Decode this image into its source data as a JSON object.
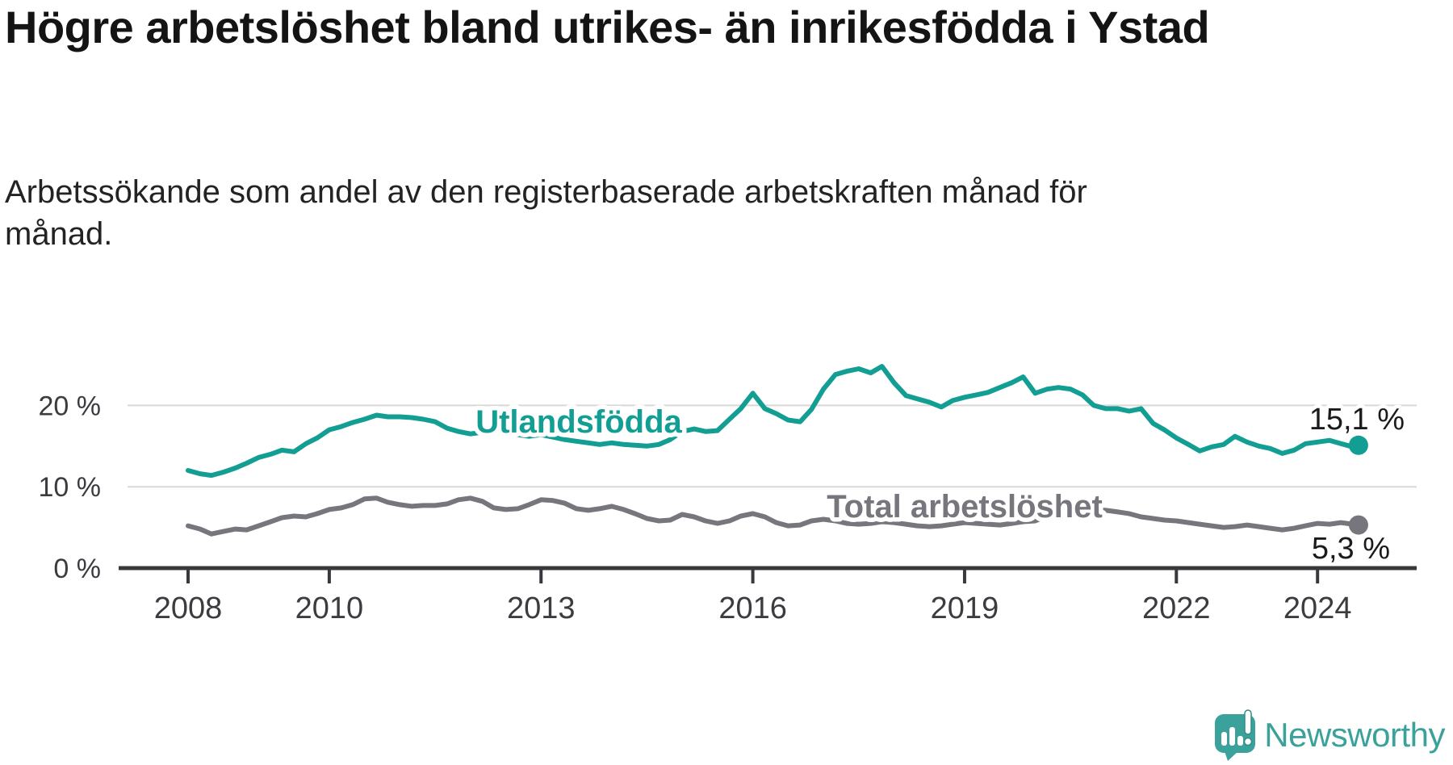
{
  "header": {
    "title": "Högre arbetslöshet bland utrikes- än inrikesfödda i Ystad",
    "subtitle": "Arbetssökande som andel av den registerbaserade arbetskraften månad för månad."
  },
  "colors": {
    "background": "#ffffff",
    "title_text": "#141414",
    "subtitle_text": "#232323",
    "tick_text": "#3c3b40",
    "gridline": "#d8d8d8",
    "axis": "#39383d",
    "value_label_text": "#1b1b1b",
    "series_foreign_born": "#139e93",
    "series_total": "#77767d",
    "logo_teal": "#3aa29a"
  },
  "chart_data": {
    "type": "line",
    "title": "Högre arbetslöshet bland utrikes- än inrikesfödda i Ystad",
    "subtitle": "Arbetssökande som andel av den registerbaserade arbetskraften månad för månad.",
    "grid": "horizontal-only",
    "legend_position": "inline-on-lines",
    "x_axis": {
      "min": 2007.6,
      "max": 2025.4,
      "ticks": [
        {
          "value": 2008,
          "label": "2008"
        },
        {
          "value": 2010,
          "label": "2010"
        },
        {
          "value": 2013,
          "label": "2013"
        },
        {
          "value": 2016,
          "label": "2016"
        },
        {
          "value": 2019,
          "label": "2019"
        },
        {
          "value": 2022,
          "label": "2022"
        },
        {
          "value": 2024,
          "label": "2024"
        }
      ]
    },
    "y_axis": {
      "min": 0,
      "max": 26,
      "unit": "%",
      "ticks": [
        {
          "value": 0,
          "label": "0 %"
        },
        {
          "value": 10,
          "label": "10 %"
        },
        {
          "value": 20,
          "label": "20 %"
        }
      ]
    },
    "x": [
      2008,
      2008.17,
      2008.33,
      2008.5,
      2008.67,
      2008.83,
      2009,
      2009.17,
      2009.33,
      2009.5,
      2009.67,
      2009.83,
      2010,
      2010.17,
      2010.33,
      2010.5,
      2010.67,
      2010.83,
      2011,
      2011.17,
      2011.33,
      2011.5,
      2011.67,
      2011.83,
      2012,
      2012.17,
      2012.33,
      2012.5,
      2012.67,
      2012.83,
      2013,
      2013.17,
      2013.33,
      2013.5,
      2013.67,
      2013.83,
      2014,
      2014.17,
      2014.33,
      2014.5,
      2014.67,
      2014.83,
      2015,
      2015.17,
      2015.33,
      2015.5,
      2015.67,
      2015.83,
      2016,
      2016.17,
      2016.33,
      2016.5,
      2016.67,
      2016.83,
      2017,
      2017.17,
      2017.33,
      2017.5,
      2017.67,
      2017.83,
      2018,
      2018.17,
      2018.33,
      2018.5,
      2018.67,
      2018.83,
      2019,
      2019.17,
      2019.33,
      2019.5,
      2019.67,
      2019.83,
      2020,
      2020.17,
      2020.33,
      2020.5,
      2020.67,
      2020.83,
      2021,
      2021.17,
      2021.33,
      2021.5,
      2021.67,
      2021.83,
      2022,
      2022.17,
      2022.33,
      2022.5,
      2022.67,
      2022.83,
      2023,
      2023.17,
      2023.33,
      2023.5,
      2023.67,
      2023.83,
      2024,
      2024.17,
      2024.33,
      2024.5,
      2024.58
    ],
    "series": [
      {
        "name": "Utlandsfödda",
        "color": "#139e93",
        "end_label": "15,1 %",
        "end_value": 15.1,
        "values": [
          12.0,
          11.6,
          11.4,
          11.8,
          12.3,
          12.9,
          13.6,
          14.0,
          14.5,
          14.3,
          15.3,
          16.0,
          17.0,
          17.4,
          17.9,
          18.3,
          18.8,
          18.6,
          18.6,
          18.5,
          18.3,
          18.0,
          17.2,
          16.8,
          16.5,
          16.7,
          17.0,
          16.8,
          16.4,
          16.2,
          16.4,
          16.1,
          15.8,
          15.6,
          15.4,
          15.2,
          15.4,
          15.2,
          15.1,
          15.0,
          15.2,
          15.8,
          16.8,
          17.1,
          16.8,
          16.9,
          18.3,
          19.6,
          21.5,
          19.6,
          19.0,
          18.2,
          18.0,
          19.5,
          22.0,
          23.8,
          24.2,
          24.5,
          24.0,
          24.8,
          22.8,
          21.2,
          20.8,
          20.4,
          19.8,
          20.6,
          21.0,
          21.3,
          21.6,
          22.2,
          22.8,
          23.5,
          21.5,
          22.0,
          22.2,
          22.0,
          21.3,
          20.0,
          19.6,
          19.6,
          19.3,
          19.6,
          17.8,
          17.0,
          16.0,
          15.2,
          14.4,
          14.9,
          15.2,
          16.2,
          15.5,
          15.0,
          14.7,
          14.1,
          14.5,
          15.3,
          15.5,
          15.7,
          15.3,
          14.9,
          15.1
        ]
      },
      {
        "name": "Total arbetslöshet",
        "color": "#77767d",
        "end_label": "5,3 %",
        "end_value": 5.3,
        "values": [
          5.2,
          4.8,
          4.2,
          4.5,
          4.8,
          4.7,
          5.2,
          5.7,
          6.2,
          6.4,
          6.3,
          6.7,
          7.2,
          7.4,
          7.8,
          8.5,
          8.6,
          8.1,
          7.8,
          7.6,
          7.7,
          7.7,
          7.9,
          8.4,
          8.6,
          8.2,
          7.4,
          7.2,
          7.3,
          7.8,
          8.4,
          8.3,
          8.0,
          7.3,
          7.1,
          7.3,
          7.6,
          7.2,
          6.7,
          6.1,
          5.8,
          5.9,
          6.6,
          6.3,
          5.8,
          5.5,
          5.8,
          6.4,
          6.7,
          6.3,
          5.6,
          5.2,
          5.3,
          5.8,
          6.0,
          5.8,
          5.5,
          5.4,
          5.5,
          5.7,
          5.6,
          5.4,
          5.2,
          5.1,
          5.2,
          5.4,
          5.6,
          5.5,
          5.4,
          5.3,
          5.5,
          5.7,
          5.8,
          6.4,
          7.2,
          7.5,
          7.4,
          7.2,
          7.1,
          6.9,
          6.7,
          6.3,
          6.1,
          5.9,
          5.8,
          5.6,
          5.4,
          5.2,
          5.0,
          5.1,
          5.3,
          5.1,
          4.9,
          4.7,
          4.9,
          5.2,
          5.5,
          5.4,
          5.6,
          5.4,
          5.3
        ]
      }
    ]
  },
  "branding": {
    "logo_text": "Newsworthy",
    "logo_icon": "speech-bubble-bar-chart-exclamation"
  }
}
